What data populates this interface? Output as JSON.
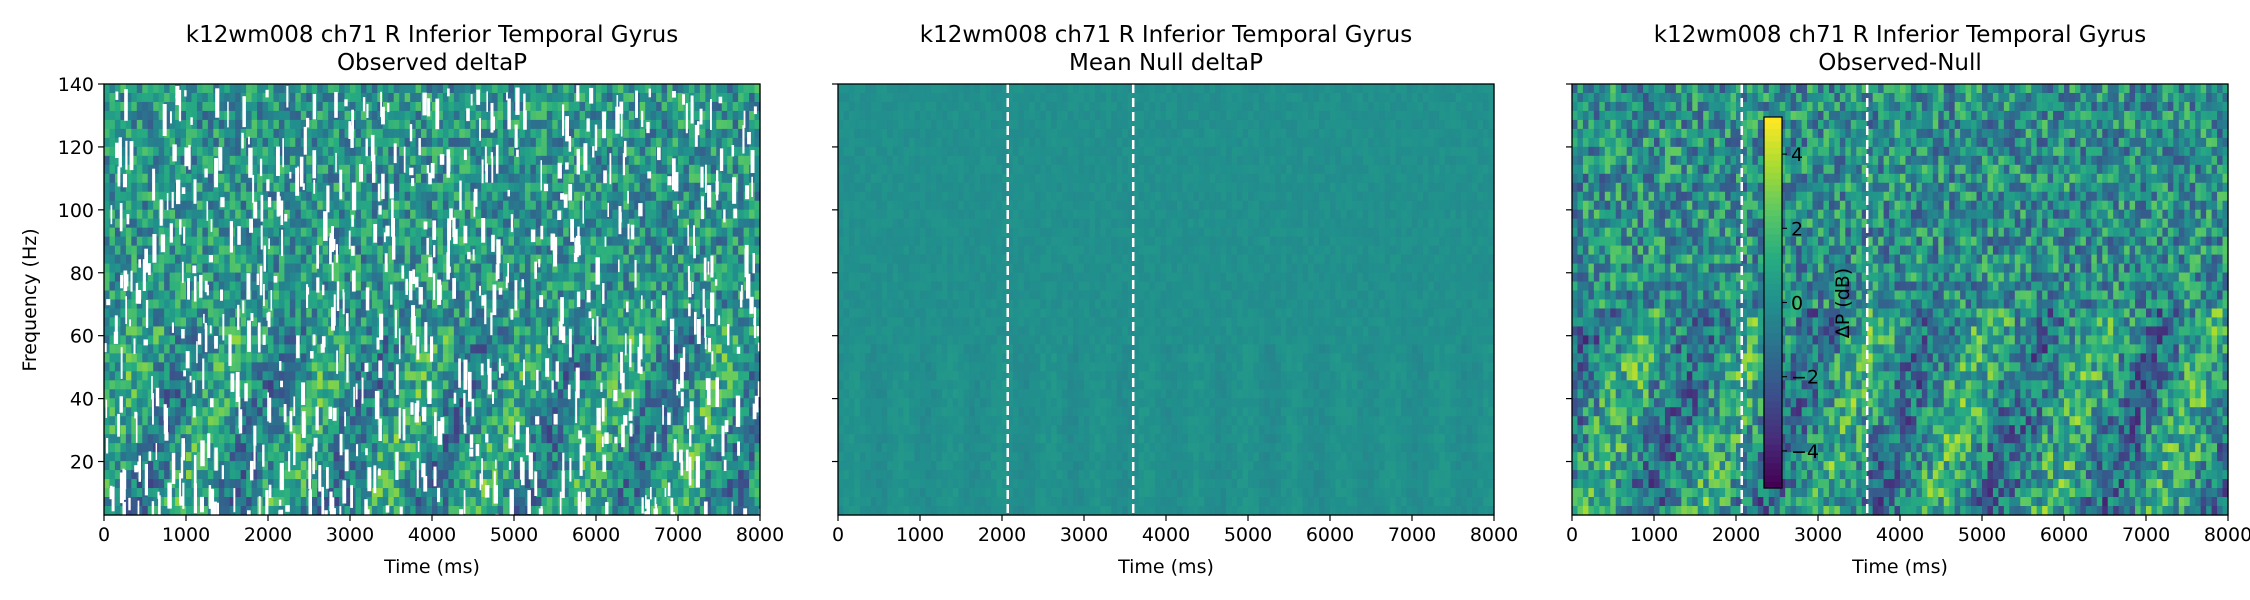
{
  "chart_data": [
    {
      "type": "heatmap",
      "title_line1": "k12wm008 ch71 R Inferior Temporal Gyrus",
      "title_line2": "Observed deltaP",
      "xlabel": "Time (ms)",
      "ylabel": "Frequency (Hz)",
      "xlim": [
        0,
        8000
      ],
      "ylim": [
        3,
        140
      ],
      "xticks": [
        0,
        1000,
        2000,
        3000,
        4000,
        5000,
        6000,
        7000,
        8000
      ],
      "yticks": [
        20,
        40,
        60,
        80,
        100,
        120,
        140
      ],
      "vlines": [],
      "pattern": "observed",
      "grid": false
    },
    {
      "type": "heatmap",
      "title_line1": "k12wm008 ch71 R Inferior Temporal Gyrus",
      "title_line2": "Mean Null deltaP",
      "xlabel": "Time (ms)",
      "ylabel": "",
      "xlim": [
        0,
        8000
      ],
      "ylim": [
        3,
        140
      ],
      "xticks": [
        0,
        1000,
        2000,
        3000,
        4000,
        5000,
        6000,
        7000,
        8000
      ],
      "yticks": [
        20,
        40,
        60,
        80,
        100,
        120,
        140
      ],
      "vlines": [
        2070,
        3600
      ],
      "pattern": "null",
      "grid": false
    },
    {
      "type": "heatmap",
      "title_line1": "k12wm008 ch71 R Inferior Temporal Gyrus",
      "title_line2": "Observed-Null",
      "xlabel": "Time (ms)",
      "ylabel": "",
      "xlim": [
        0,
        8000
      ],
      "ylim": [
        3,
        140
      ],
      "xticks": [
        0,
        1000,
        2000,
        3000,
        4000,
        5000,
        6000,
        7000,
        8000
      ],
      "yticks": [
        20,
        40,
        60,
        80,
        100,
        120,
        140
      ],
      "vlines": [
        2070,
        3600
      ],
      "pattern": "difference",
      "grid": false,
      "colorbar": {
        "label": "ΔP (dB)",
        "range": [
          -5,
          5
        ],
        "ticks": [
          4,
          2,
          0,
          -2,
          -4
        ],
        "tick_labels": [
          "4",
          "2",
          "0",
          "−2",
          "−4"
        ],
        "colormap": "viridis",
        "colors": [
          "#440154",
          "#3b528b",
          "#21918c",
          "#5ec962",
          "#fde725"
        ]
      }
    }
  ]
}
